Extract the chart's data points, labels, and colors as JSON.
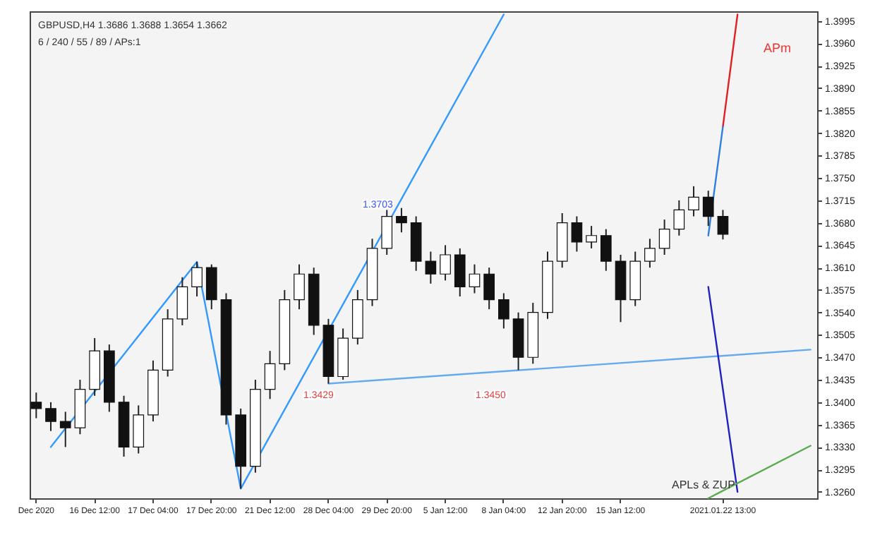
{
  "chart_data": {
    "type": "candlestick",
    "categories": [
      "Dec 2020",
      null,
      null,
      null,
      "16 Dec 12:00",
      null,
      null,
      null,
      "17 Dec 04:00",
      null,
      null,
      null,
      "17 Dec 20:00",
      null,
      null,
      null,
      "21 Dec 12:00",
      null,
      null,
      null,
      "28 Dec 04:00",
      null,
      null,
      null,
      "29 Dec 20:00",
      null,
      null,
      null,
      "5 Jan 12:00",
      null,
      null,
      null,
      "8 Jan 04:00",
      null,
      null,
      null,
      "12 Jan 20:00",
      null,
      null,
      null,
      "15 Jan 12:00",
      null,
      null,
      null,
      null,
      null,
      null,
      "2021.01.22 13:00",
      null,
      null,
      null,
      null,
      null,
      null
    ],
    "ohlc": [
      [
        1.34,
        1.3415,
        1.3375,
        1.339
      ],
      [
        1.339,
        1.34,
        1.3355,
        1.337
      ],
      [
        1.337,
        1.3385,
        1.333,
        1.336
      ],
      [
        1.336,
        1.3435,
        1.335,
        1.342
      ],
      [
        1.342,
        1.35,
        1.341,
        1.348
      ],
      [
        1.348,
        1.349,
        1.3385,
        1.34
      ],
      [
        1.34,
        1.341,
        1.3315,
        1.333
      ],
      [
        1.333,
        1.3395,
        1.332,
        1.338
      ],
      [
        1.338,
        1.3465,
        1.337,
        1.345
      ],
      [
        1.345,
        1.3545,
        1.344,
        1.353
      ],
      [
        1.353,
        1.3595,
        1.352,
        1.358
      ],
      [
        1.358,
        1.3619,
        1.3565,
        1.361
      ],
      [
        1.361,
        1.3615,
        1.3545,
        1.356
      ],
      [
        1.356,
        1.357,
        1.3365,
        1.338
      ],
      [
        1.338,
        1.339,
        1.3265,
        1.33
      ],
      [
        1.33,
        1.3435,
        1.329,
        1.342
      ],
      [
        1.342,
        1.348,
        1.3405,
        1.346
      ],
      [
        1.346,
        1.3575,
        1.345,
        1.356
      ],
      [
        1.356,
        1.3615,
        1.3545,
        1.36
      ],
      [
        1.36,
        1.361,
        1.3505,
        1.352
      ],
      [
        1.352,
        1.353,
        1.3429,
        1.344
      ],
      [
        1.344,
        1.3515,
        1.3435,
        1.35
      ],
      [
        1.35,
        1.3575,
        1.349,
        1.356
      ],
      [
        1.356,
        1.3655,
        1.355,
        1.364
      ],
      [
        1.364,
        1.37,
        1.363,
        1.369
      ],
      [
        1.369,
        1.3703,
        1.3665,
        1.368
      ],
      [
        1.368,
        1.369,
        1.3605,
        1.362
      ],
      [
        1.362,
        1.3635,
        1.3585,
        1.36
      ],
      [
        1.36,
        1.3645,
        1.359,
        1.363
      ],
      [
        1.363,
        1.364,
        1.3565,
        1.358
      ],
      [
        1.358,
        1.3615,
        1.357,
        1.36
      ],
      [
        1.36,
        1.361,
        1.3545,
        1.356
      ],
      [
        1.356,
        1.357,
        1.3515,
        1.353
      ],
      [
        1.353,
        1.354,
        1.345,
        1.347
      ],
      [
        1.347,
        1.3555,
        1.346,
        1.354
      ],
      [
        1.354,
        1.3635,
        1.353,
        1.362
      ],
      [
        1.362,
        1.3695,
        1.361,
        1.368
      ],
      [
        1.368,
        1.369,
        1.3635,
        1.365
      ],
      [
        1.365,
        1.3675,
        1.364,
        1.366
      ],
      [
        1.366,
        1.367,
        1.3605,
        1.362
      ],
      [
        1.362,
        1.363,
        1.3525,
        1.356
      ],
      [
        1.356,
        1.3635,
        1.355,
        1.362
      ],
      [
        1.362,
        1.3655,
        1.361,
        1.364
      ],
      [
        1.364,
        1.3685,
        1.363,
        1.367
      ],
      [
        1.367,
        1.3715,
        1.366,
        1.37
      ],
      [
        1.37,
        1.3737,
        1.369,
        1.372
      ],
      [
        1.372,
        1.373,
        1.3675,
        1.369
      ],
      [
        1.369,
        1.37,
        1.3654,
        1.3662
      ],
      null,
      null,
      null,
      null,
      null,
      null
    ],
    "series": [
      {
        "type": "line",
        "color": "#3399ff",
        "values": [
          null,
          1.333,
          null,
          null,
          null,
          null,
          null,
          null,
          null,
          null,
          null,
          1.3619,
          null,
          null,
          1.3265,
          null,
          null,
          null,
          null,
          null,
          null,
          null,
          null,
          null,
          null,
          null,
          null,
          null,
          null,
          null,
          null,
          null,
          1.4005,
          null,
          null,
          null,
          null,
          null,
          null,
          null,
          null,
          null,
          null,
          null,
          null,
          null,
          null,
          null,
          null,
          null,
          null,
          null,
          null,
          null
        ]
      },
      {
        "type": "line",
        "color": "#66aaee",
        "values": [
          null,
          null,
          null,
          null,
          null,
          null,
          null,
          null,
          null,
          null,
          null,
          null,
          null,
          null,
          null,
          null,
          null,
          null,
          null,
          null,
          1.3429,
          null,
          null,
          null,
          null,
          null,
          null,
          null,
          null,
          null,
          null,
          null,
          null,
          null,
          null,
          null,
          null,
          null,
          null,
          null,
          null,
          null,
          null,
          null,
          null,
          null,
          null,
          null,
          null,
          null,
          null,
          null,
          null,
          1.3482
        ]
      },
      {
        "type": "line",
        "color": "#e02020",
        "values": [
          null,
          null,
          null,
          null,
          null,
          null,
          null,
          null,
          null,
          null,
          null,
          null,
          null,
          null,
          null,
          null,
          null,
          null,
          null,
          null,
          null,
          null,
          null,
          null,
          null,
          null,
          null,
          null,
          null,
          null,
          null,
          null,
          null,
          null,
          null,
          null,
          null,
          null,
          null,
          null,
          null,
          null,
          null,
          null,
          null,
          null,
          null,
          1.383,
          1.4005,
          null,
          null,
          null,
          null,
          null
        ]
      },
      {
        "type": "line",
        "color": "#2f7fe0",
        "values": [
          null,
          null,
          null,
          null,
          null,
          null,
          null,
          null,
          null,
          null,
          null,
          null,
          null,
          null,
          null,
          null,
          null,
          null,
          null,
          null,
          null,
          null,
          null,
          null,
          null,
          null,
          null,
          null,
          null,
          null,
          null,
          null,
          null,
          null,
          null,
          null,
          null,
          null,
          null,
          null,
          null,
          null,
          null,
          null,
          null,
          null,
          1.366,
          1.383,
          null,
          null,
          null,
          null,
          null,
          null
        ]
      },
      {
        "type": "line",
        "color": "#2020c0",
        "values": [
          null,
          null,
          null,
          null,
          null,
          null,
          null,
          null,
          null,
          null,
          null,
          null,
          null,
          null,
          null,
          null,
          null,
          null,
          null,
          null,
          null,
          null,
          null,
          null,
          null,
          null,
          null,
          null,
          null,
          null,
          null,
          null,
          null,
          null,
          null,
          null,
          null,
          null,
          null,
          null,
          null,
          null,
          null,
          null,
          null,
          null,
          1.358,
          null,
          1.326,
          null,
          null,
          null,
          null,
          null
        ]
      },
      {
        "type": "line",
        "color": "#5aaa50",
        "values": [
          null,
          null,
          null,
          null,
          null,
          null,
          null,
          null,
          null,
          null,
          null,
          null,
          null,
          null,
          null,
          null,
          null,
          null,
          null,
          null,
          null,
          null,
          null,
          null,
          null,
          null,
          null,
          null,
          null,
          null,
          null,
          null,
          null,
          null,
          null,
          null,
          null,
          null,
          null,
          null,
          null,
          null,
          null,
          null,
          null,
          null,
          1.325,
          null,
          null,
          null,
          null,
          null,
          null,
          1.3332
        ]
      }
    ],
    "ylim": [
      1.325,
      1.401
    ],
    "yticks": [
      {
        "value": 1.326,
        "label": "1.3260"
      },
      1.3295,
      {
        "value": 1.333,
        "label": "1.3330"
      },
      1.3365,
      {
        "value": 1.34,
        "label": "1.3400"
      },
      1.3435,
      {
        "value": 1.347,
        "label": "1.3470"
      },
      1.3505,
      {
        "value": 1.354,
        "label": "1.3540"
      },
      1.3575,
      {
        "value": 1.361,
        "label": "1.3610"
      },
      1.3645,
      {
        "value": 1.368,
        "label": "1.3680"
      },
      1.3715,
      {
        "value": 1.375,
        "label": "1.3750"
      },
      1.3785,
      {
        "value": 1.382,
        "label": "1.3820"
      },
      1.3855,
      {
        "value": 1.389,
        "label": "1.3890"
      },
      1.3925,
      {
        "value": 1.396,
        "label": "1.3960"
      },
      1.3995
    ],
    "annotations": [
      "GBPUSD,H4 1.3686 1.3688 1.3654 1.3662",
      "6 / 240 / 55 / 89 / APs:1",
      "APm",
      "APLs & ZUP",
      "1.3703",
      "1.3429",
      "1.3450"
    ]
  }
}
